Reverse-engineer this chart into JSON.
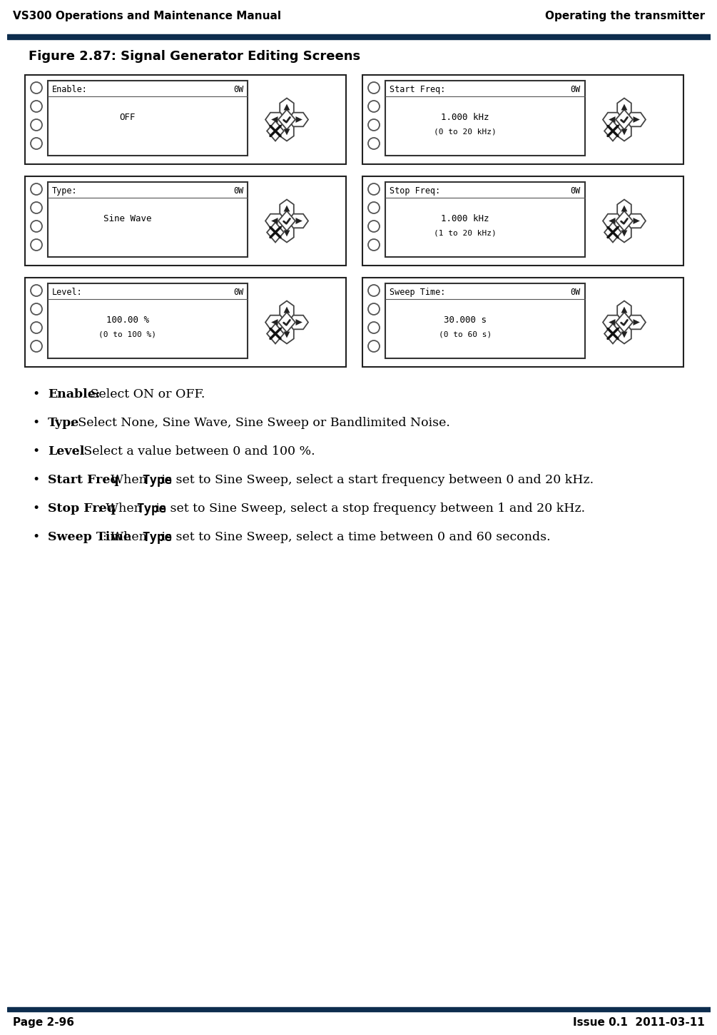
{
  "header_left": "VS300 Operations and Maintenance Manual",
  "header_right": "Operating the transmitter",
  "footer_left": "Page 2-96",
  "footer_right": "Issue 0.1  2011-03-11",
  "figure_title": "Figure 2.87: Signal Generator Editing Screens",
  "header_bar_color": "#0d2d4e",
  "screens": [
    {
      "title": "Enable:",
      "value": "OFF",
      "sub": "",
      "col": 0,
      "row": 0
    },
    {
      "title": "Start Freq:",
      "value": "1.000 kHz",
      "sub": "(0 to 20 kHz)",
      "col": 1,
      "row": 0
    },
    {
      "title": "Type:",
      "value": "Sine Wave",
      "sub": "",
      "col": 0,
      "row": 1
    },
    {
      "title": "Stop Freq:",
      "value": "1.000 kHz",
      "sub": "(1 to 20 kHz)",
      "col": 1,
      "row": 1
    },
    {
      "title": "Level:",
      "value": "100.00 %",
      "sub": "(0 to 100 %)",
      "col": 0,
      "row": 2
    },
    {
      "title": "Sweep Time:",
      "value": "30.000 s",
      "sub": "(0 to 60 s)",
      "col": 1,
      "row": 2
    }
  ],
  "bullet_items": [
    {
      "bold": "Enable:",
      "bold_style": "bold",
      "colon_in_bold": true,
      "normal": " Select ON or OFF."
    },
    {
      "bold": "Type",
      "bold_style": "bold",
      "colon_in_bold": false,
      "normal": ": Select None, Sine Wave, Sine Sweep or Bandlimited Noise."
    },
    {
      "bold": "Level",
      "bold_style": "bold",
      "colon_in_bold": false,
      "normal": ": Select a value between 0 and 100 %."
    },
    {
      "bold": "Start Freq",
      "bold_style": "bold",
      "colon_in_bold": false,
      "normal": ": When Type is set to Sine Sweep, select a start frequency between 0 and 20 kHz.",
      "type_word": "Type"
    },
    {
      "bold": "Stop Freq",
      "bold_style": "bold",
      "colon_in_bold": false,
      "normal": ": When Type is set to Sine Sweep, select a stop frequency between 1 and 20 kHz.",
      "type_word": "Type"
    },
    {
      "bold": "Sweep Time",
      "bold_style": "bold",
      "colon_in_bold": false,
      "normal": ": When Type is set to Sine Sweep, select a time between 0 and 60 seconds.",
      "type_word": "Type"
    }
  ]
}
